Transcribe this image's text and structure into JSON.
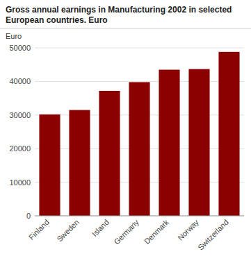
{
  "chart_data": {
    "type": "bar",
    "title": "Gross annual earnings in Manufacturing 2002 in selected\nEuropean countries. Euro",
    "ylabel": "Euro",
    "categories": [
      "Finland",
      "Sweden",
      "Island",
      "Germany",
      "Denmark",
      "Norway",
      "Switzerland"
    ],
    "values": [
      30200,
      31500,
      37200,
      39800,
      43500,
      43700,
      48800
    ],
    "color": "#8B0000",
    "ylim": [
      0,
      50000
    ],
    "yticks": [
      0,
      10000,
      20000,
      30000,
      40000,
      50000
    ],
    "grid": true
  }
}
